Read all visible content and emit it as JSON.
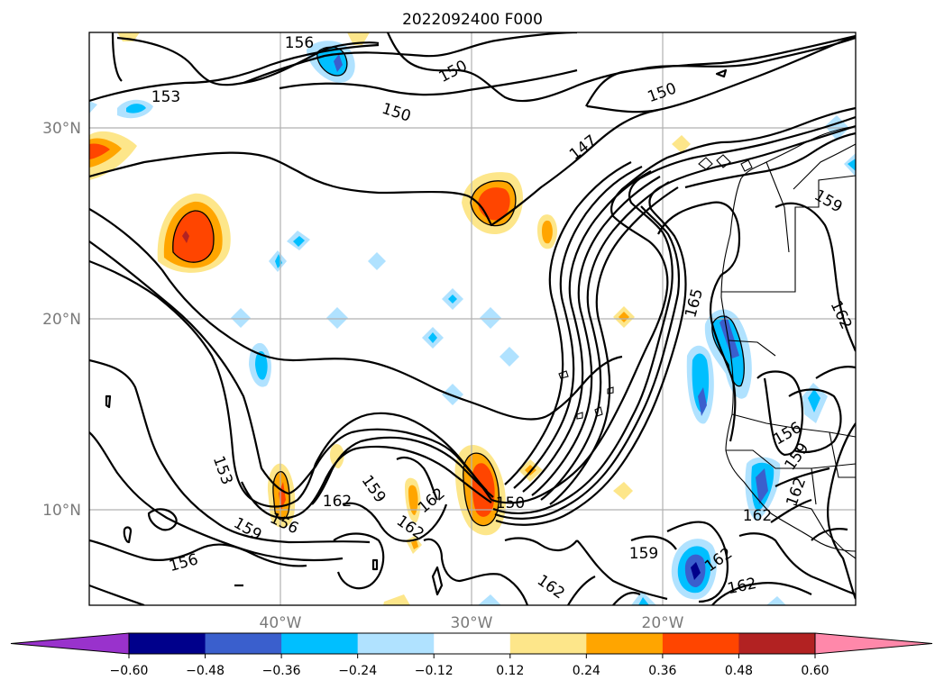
{
  "map": {
    "title": "2022092400 F000",
    "lat_labels": [
      "30°N",
      "20°N",
      "10°N"
    ],
    "lon_labels": [
      "40°W",
      "30°W",
      "20°W"
    ],
    "contour_labels": [
      "156",
      "153",
      "150",
      "150",
      "150",
      "147",
      "159",
      "165",
      "162",
      "153",
      "162",
      "159",
      "162",
      "150",
      "159",
      "156",
      "162",
      "156",
      "159",
      "162",
      "162",
      "159",
      "162",
      "156",
      "162"
    ]
  },
  "colorbar": {
    "ticks": [
      "−0.60",
      "−0.48",
      "−0.36",
      "−0.24",
      "−0.12",
      "0.12",
      "0.24",
      "0.36",
      "0.48",
      "0.60"
    ],
    "colors": [
      "#9932cc",
      "#00008b",
      "#3a5fcd",
      "#00bfff",
      "#b0e2ff",
      "#ffffff",
      "#fde68a",
      "#ffa500",
      "#ff4500",
      "#b22222",
      "#ff88aa"
    ]
  }
}
